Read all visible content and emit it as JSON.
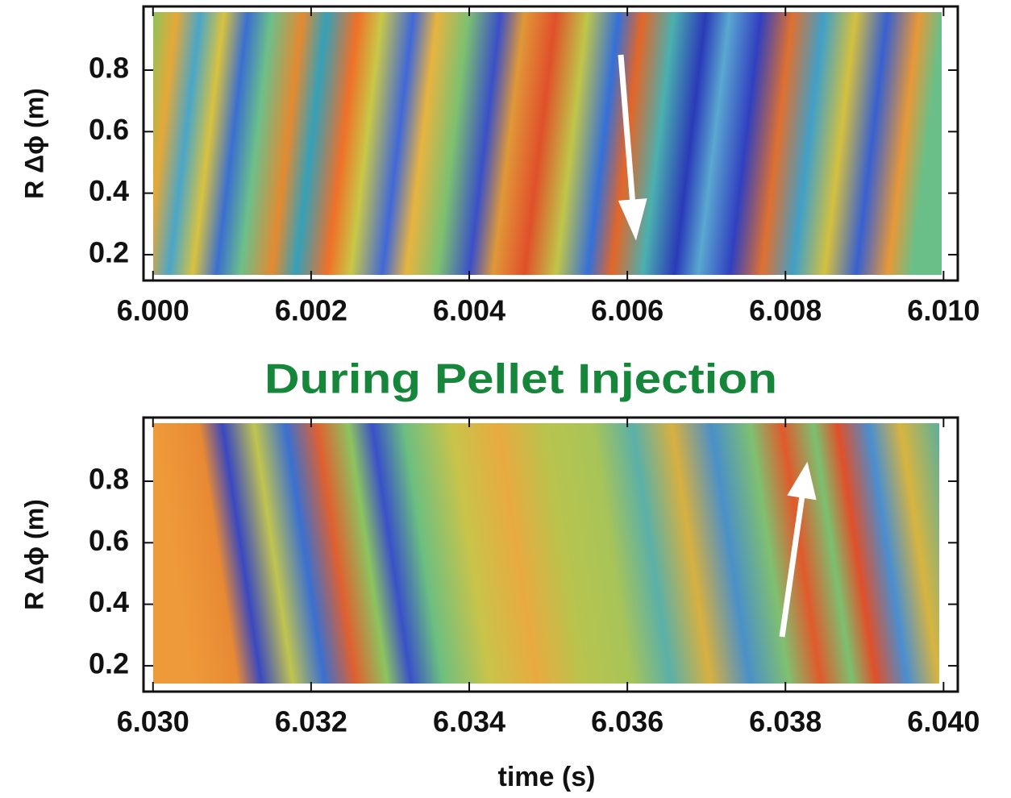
{
  "chart_data": [
    {
      "type": "heatmap",
      "y_label": "R Δϕ (m)",
      "xlim": [
        5.99988,
        6.01018
      ],
      "xticks": [
        {
          "value": 6.0,
          "label": "6.000"
        },
        {
          "value": 6.002,
          "label": "6.002"
        },
        {
          "value": 6.004,
          "label": "6.004"
        },
        {
          "value": 6.006,
          "label": "6.006"
        },
        {
          "value": 6.008,
          "label": "6.008"
        },
        {
          "value": 6.01,
          "label": "6.010"
        }
      ],
      "ylim": [
        0.116,
        1.007
      ],
      "yticks": [
        0.2,
        0.4,
        0.6,
        0.8
      ]
    },
    {
      "type": "heatmap",
      "title": "During Pellet Injection",
      "title_color": "#15863a",
      "x_label": "time (s)",
      "y_label": "R Δϕ (m)",
      "xlim": [
        6.02988,
        6.04018
      ],
      "xticks": [
        {
          "value": 6.03,
          "label": "6.030"
        },
        {
          "value": 6.032,
          "label": "6.032"
        },
        {
          "value": 6.034,
          "label": "6.034"
        },
        {
          "value": 6.036,
          "label": "6.036"
        },
        {
          "value": 6.038,
          "label": "6.038"
        },
        {
          "value": 6.04,
          "label": "6.040"
        }
      ],
      "ylim": [
        0.116,
        1.007
      ],
      "yticks": [
        0.2,
        0.4,
        0.6,
        0.8
      ]
    }
  ]
}
